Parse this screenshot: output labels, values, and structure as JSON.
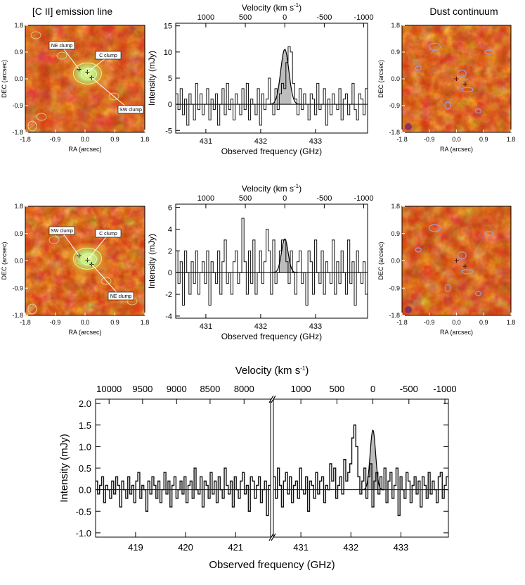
{
  "titles": {
    "cii": "[C II] emission line",
    "velocity_top": "Velocity (km s",
    "velocity_sup": "-1",
    "velocity_close": ")",
    "dust": "Dust continuum"
  },
  "colors": {
    "spectrum": "#111111",
    "fit_fill": "#bdbdbd",
    "fit_line": "#000000",
    "map_dark": "#3a0600",
    "map_mid": "#c4380a",
    "map_bright": "#ffb24a",
    "contour": "#9f9fd9"
  },
  "maps": {
    "ra_label": "RA (arcsec)",
    "dec_label": "DEC (arcsec)",
    "ra_ticks": [
      "-1.8",
      "-0.9",
      "0.0",
      "0.9",
      "1.8"
    ],
    "dec_ticks": [
      "1.8",
      "0.9",
      "0.0",
      "-0.9",
      "-1.8"
    ],
    "row1_labels": [
      "NE clump",
      "C clump",
      "SW clump"
    ],
    "row2_labels": [
      "SW clump",
      "C clump",
      "NE clump"
    ]
  },
  "chart_data": [
    {
      "type": "line",
      "panel": "top-spectrum",
      "title": "",
      "xlabel": "Observed frequency (GHz)",
      "ylabel": "Intensity (mJy)",
      "x_top_label": "Velocity (km s-1)",
      "xlim": [
        430.45,
        433.95
      ],
      "ylim": [
        -5.5,
        15.5
      ],
      "xticks": [
        431,
        432,
        433
      ],
      "yticks": [
        -5,
        0,
        5,
        10,
        15
      ],
      "top_ticks": [
        {
          "label": "1000",
          "freq": 431.0
        },
        {
          "label": "500",
          "freq": 431.72
        },
        {
          "label": "0",
          "freq": 432.44
        },
        {
          "label": "-500",
          "freq": 433.16
        },
        {
          "label": "-1000",
          "freq": 433.88
        }
      ],
      "gauss": {
        "amp": 10.5,
        "center": 432.44,
        "sigma": 0.075
      },
      "series": [
        {
          "name": "spectrum",
          "x0": 430.45,
          "dx": 0.0402,
          "values": [
            2,
            -1,
            3,
            -2,
            1,
            -4,
            2,
            0,
            -3,
            4,
            -1,
            2,
            -2,
            0,
            3,
            -3,
            1,
            -1,
            2,
            -4,
            0,
            3,
            -2,
            4,
            -1,
            1,
            -3,
            2,
            0,
            -2,
            3,
            -1,
            4,
            -3,
            1,
            0,
            -2,
            3,
            -4,
            2,
            -1,
            1,
            5,
            0,
            -2,
            3,
            -1,
            2,
            4,
            3,
            8,
            11,
            10,
            4,
            1,
            -2,
            3,
            -1,
            2,
            0,
            -3,
            2,
            1,
            -2,
            4,
            -1,
            0,
            3,
            -4,
            1,
            -2,
            2,
            0,
            -1,
            3,
            -3,
            1,
            2,
            -2,
            0,
            4,
            -1,
            -3,
            2,
            1,
            -2,
            3
          ]
        }
      ]
    },
    {
      "type": "line",
      "panel": "middle-spectrum",
      "title": "",
      "xlabel": "Observed frequency (GHz)",
      "ylabel": "Intensity (mJy)",
      "x_top_label": "Velocity (km s-1)",
      "xlim": [
        430.45,
        433.95
      ],
      "ylim": [
        -4.2,
        6.3
      ],
      "xticks": [
        431,
        432,
        433
      ],
      "yticks": [
        -4,
        -2,
        0,
        2,
        4,
        6
      ],
      "top_ticks": [
        {
          "label": "1000",
          "freq": 431.0
        },
        {
          "label": "500",
          "freq": 431.72
        },
        {
          "label": "0",
          "freq": 432.44
        },
        {
          "label": "-500",
          "freq": 433.16
        },
        {
          "label": "-1000",
          "freq": 433.88
        }
      ],
      "gauss": {
        "amp": 3.1,
        "center": 432.44,
        "sigma": 0.06
      },
      "series": [
        {
          "name": "spectrum",
          "x0": 430.45,
          "dx": 0.0402,
          "values": [
            2,
            -1,
            1,
            -3,
            2,
            0,
            -2,
            1,
            -1,
            2,
            -2,
            0,
            1,
            -1,
            2,
            -3,
            1,
            0,
            -1,
            2,
            -2,
            1,
            3,
            -1,
            0,
            -2,
            1,
            2,
            -1,
            0,
            5,
            1,
            -2,
            2,
            -1,
            3,
            -2,
            0,
            2,
            -1,
            1,
            4,
            2,
            -2,
            3,
            -1,
            0,
            2,
            3,
            3,
            1,
            -1,
            2,
            0,
            -2,
            1,
            2,
            -1,
            0,
            -3,
            2,
            1,
            -2,
            3,
            0,
            -1,
            2,
            -2,
            1,
            0,
            -1,
            3,
            -2,
            1,
            -1,
            2,
            0,
            -2,
            3,
            -1,
            1,
            -3,
            2,
            0,
            -1,
            1,
            -2
          ]
        }
      ]
    },
    {
      "type": "line",
      "panel": "bottom-spectrum",
      "title": "",
      "xlabel": "Observed frequency (GHz)",
      "ylabel": "Intensity (mJy)",
      "x_top_label": "Velocity (km s-1)",
      "broken_axis": true,
      "left_xlim": [
        418.2,
        421.7
      ],
      "right_xlim": [
        430.45,
        433.95
      ],
      "ylim": [
        -1.1,
        2.1
      ],
      "left_xticks": [
        419,
        420,
        421
      ],
      "right_xticks": [
        431,
        432,
        433
      ],
      "yticks": [
        -1.0,
        -0.5,
        0.0,
        0.5,
        1.0,
        1.5,
        2.0
      ],
      "left_top_ticks": [
        {
          "label": "10000",
          "freq": 418.47
        },
        {
          "label": "9500",
          "freq": 419.14
        },
        {
          "label": "9000",
          "freq": 419.82
        },
        {
          "label": "8500",
          "freq": 420.49
        },
        {
          "label": "8000",
          "freq": 421.17
        }
      ],
      "right_top_ticks": [
        {
          "label": "1000",
          "freq": 431.0
        },
        {
          "label": "500",
          "freq": 431.72
        },
        {
          "label": "0",
          "freq": 432.44
        },
        {
          "label": "-500",
          "freq": 433.16
        },
        {
          "label": "-1000",
          "freq": 433.88
        }
      ],
      "gauss": {
        "amp": 1.38,
        "center": 432.44,
        "sigma": 0.055
      },
      "series": [
        {
          "name": "left-spectrum",
          "x0": 418.2,
          "dx": 0.0402,
          "values": [
            0.2,
            -0.1,
            0.1,
            0.3,
            -0.3,
            0.1,
            0.0,
            -0.2,
            0.2,
            -0.1,
            0.3,
            0.1,
            -0.4,
            0.2,
            0.0,
            -0.2,
            0.3,
            -0.1,
            0.1,
            -0.3,
            0.2,
            0.4,
            -0.2,
            0.1,
            0.0,
            -0.5,
            0.2,
            -0.1,
            0.3,
            0.1,
            -0.2,
            0.2,
            -0.3,
            0.0,
            0.4,
            -0.1,
            0.2,
            -0.4,
            0.1,
            0.3,
            -0.2,
            0.0,
            0.2,
            -0.1,
            0.3,
            -0.3,
            0.1,
            0.2,
            -0.2,
            0.5,
            0.0,
            -0.1,
            0.3,
            -0.4,
            0.2,
            0.1,
            -0.2,
            0.4,
            -0.1,
            0.2,
            -0.3,
            0.3,
            0.0,
            -0.2,
            0.5,
            0.1,
            -0.1,
            0.2,
            -0.4,
            0.3,
            0.0,
            -0.2,
            0.2,
            0.4,
            -0.1,
            0.1,
            -0.5,
            0.3,
            0.2,
            -0.2,
            0.1,
            0.3,
            -0.3,
            0.0,
            0.2,
            -0.6,
            0.1
          ]
        },
        {
          "name": "right-spectrum",
          "x0": 430.45,
          "dx": 0.0402,
          "values": [
            0.3,
            -0.2,
            0.5,
            0.1,
            -0.4,
            0.2,
            0.4,
            -0.1,
            0.3,
            -0.3,
            0.1,
            0.2,
            -0.2,
            0.5,
            0.0,
            -0.1,
            0.3,
            -0.5,
            0.2,
            0.1,
            -0.2,
            0.4,
            -0.1,
            0.2,
            0.3,
            -0.3,
            0.1,
            0.0,
            0.6,
            0.2,
            0.5,
            -0.2,
            0.1,
            0.3,
            -0.1,
            0.7,
            0.2,
            0.4,
            0.6,
            1.2,
            1.5,
            1.0,
            0.3,
            -0.1,
            0.2,
            0.5,
            -0.2,
            0.3,
            0.6,
            -0.4,
            0.2,
            0.4,
            -0.1,
            0.3,
            0.0,
            0.5,
            -0.3,
            0.2,
            0.4,
            -0.2,
            0.1,
            0.5,
            -0.6,
            0.3,
            0.0,
            -0.2,
            0.4,
            0.2,
            -0.3,
            0.1,
            0.3,
            -0.1,
            0.2,
            -0.4,
            0.3,
            0.1,
            -0.2,
            0.4,
            -0.1,
            0.2,
            0.0,
            -0.3,
            0.3,
            0.4,
            -0.2,
            0.1,
            0.3
          ]
        }
      ]
    }
  ]
}
